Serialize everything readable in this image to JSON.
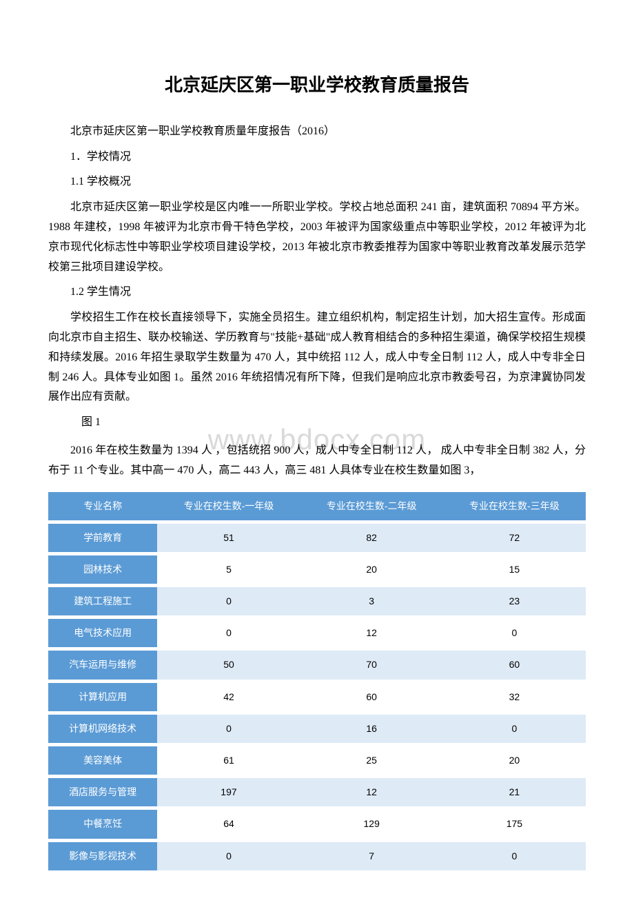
{
  "title": "北京延庆区第一职业学校教育质量报告",
  "subtitle": "北京市延庆区第一职业学校教育质量年度报告（2016）",
  "section1_heading": "1．学校情况",
  "section1_1_heading": "1.1 学校概况",
  "section1_1_body": "北京市延庆区第一职业学校是区内唯一一所职业学校。学校占地总面积 241 亩，建筑面积 70894 平方米。1988 年建校，1998 年被评为北京市骨干特色学校，2003 年被评为国家级重点中等职业学校，2012 年被评为北京市现代化标志性中等职业学校项目建设学校，2013 年被北京市教委推荐为国家中等职业教育改革发展示范学校第三批项目建设学校。",
  "section1_2_heading": "1.2 学生情况",
  "section1_2_body1": "学校招生工作在校长直接领导下，实施全员招生。建立组织机构，制定招生计划，加大招生宣传。形成面向北京市自主招生、联办校输送、学历教育与\"技能+基础\"成人教育相结合的多种招生渠道，确保学校招生规模和持续发展。2016 年招生录取学生数量为 470 人，其中统招 112 人，成人中专全日制 112 人，成人中专非全日制 246 人。具体专业如图 1。虽然 2016 年统招情况有所下降，但我们是响应北京市教委号召，为京津冀协同发展作出应有贡献。",
  "figure1_label": "图 1",
  "section1_2_body2": "2016 年在校生数量为 1394 人 ，包括统招 900 人，成人中专全日制 112 人， 成人中专非全日制 382 人，分布于 11 个专业。其中高一 470 人，高二 443 人，高三 481 人具体专业在校生数量如图 3，",
  "watermark": "www.bdocx.com",
  "table": {
    "header_bg": "#5b9bd5",
    "header_color": "#ffffff",
    "row_odd_bg": "#deeaf6",
    "row_even_bg": "#ffffff",
    "columns": [
      "专业名称",
      "专业在校生数-一年级",
      "专业在校生数-二年级",
      "专业在校生数-三年级"
    ],
    "rows": [
      {
        "label": "学前教育",
        "v1": "51",
        "v2": "82",
        "v3": "72"
      },
      {
        "label": "园林技术",
        "v1": "5",
        "v2": "20",
        "v3": "15"
      },
      {
        "label": "建筑工程施工",
        "v1": "0",
        "v2": "3",
        "v3": "23"
      },
      {
        "label": "电气技术应用",
        "v1": "0",
        "v2": "12",
        "v3": "0"
      },
      {
        "label": "汽车运用与维修",
        "v1": "50",
        "v2": "70",
        "v3": "60"
      },
      {
        "label": "计算机应用",
        "v1": "42",
        "v2": "60",
        "v3": "32"
      },
      {
        "label": "计算机网络技术",
        "v1": "0",
        "v2": "16",
        "v3": "0"
      },
      {
        "label": "美容美体",
        "v1": "61",
        "v2": "25",
        "v3": "20"
      },
      {
        "label": "酒店服务与管理",
        "v1": "197",
        "v2": "12",
        "v3": "21"
      },
      {
        "label": "中餐烹饪",
        "v1": "64",
        "v2": "129",
        "v3": "175"
      },
      {
        "label": "影像与影视技术",
        "v1": "0",
        "v2": "7",
        "v3": "0"
      }
    ]
  }
}
